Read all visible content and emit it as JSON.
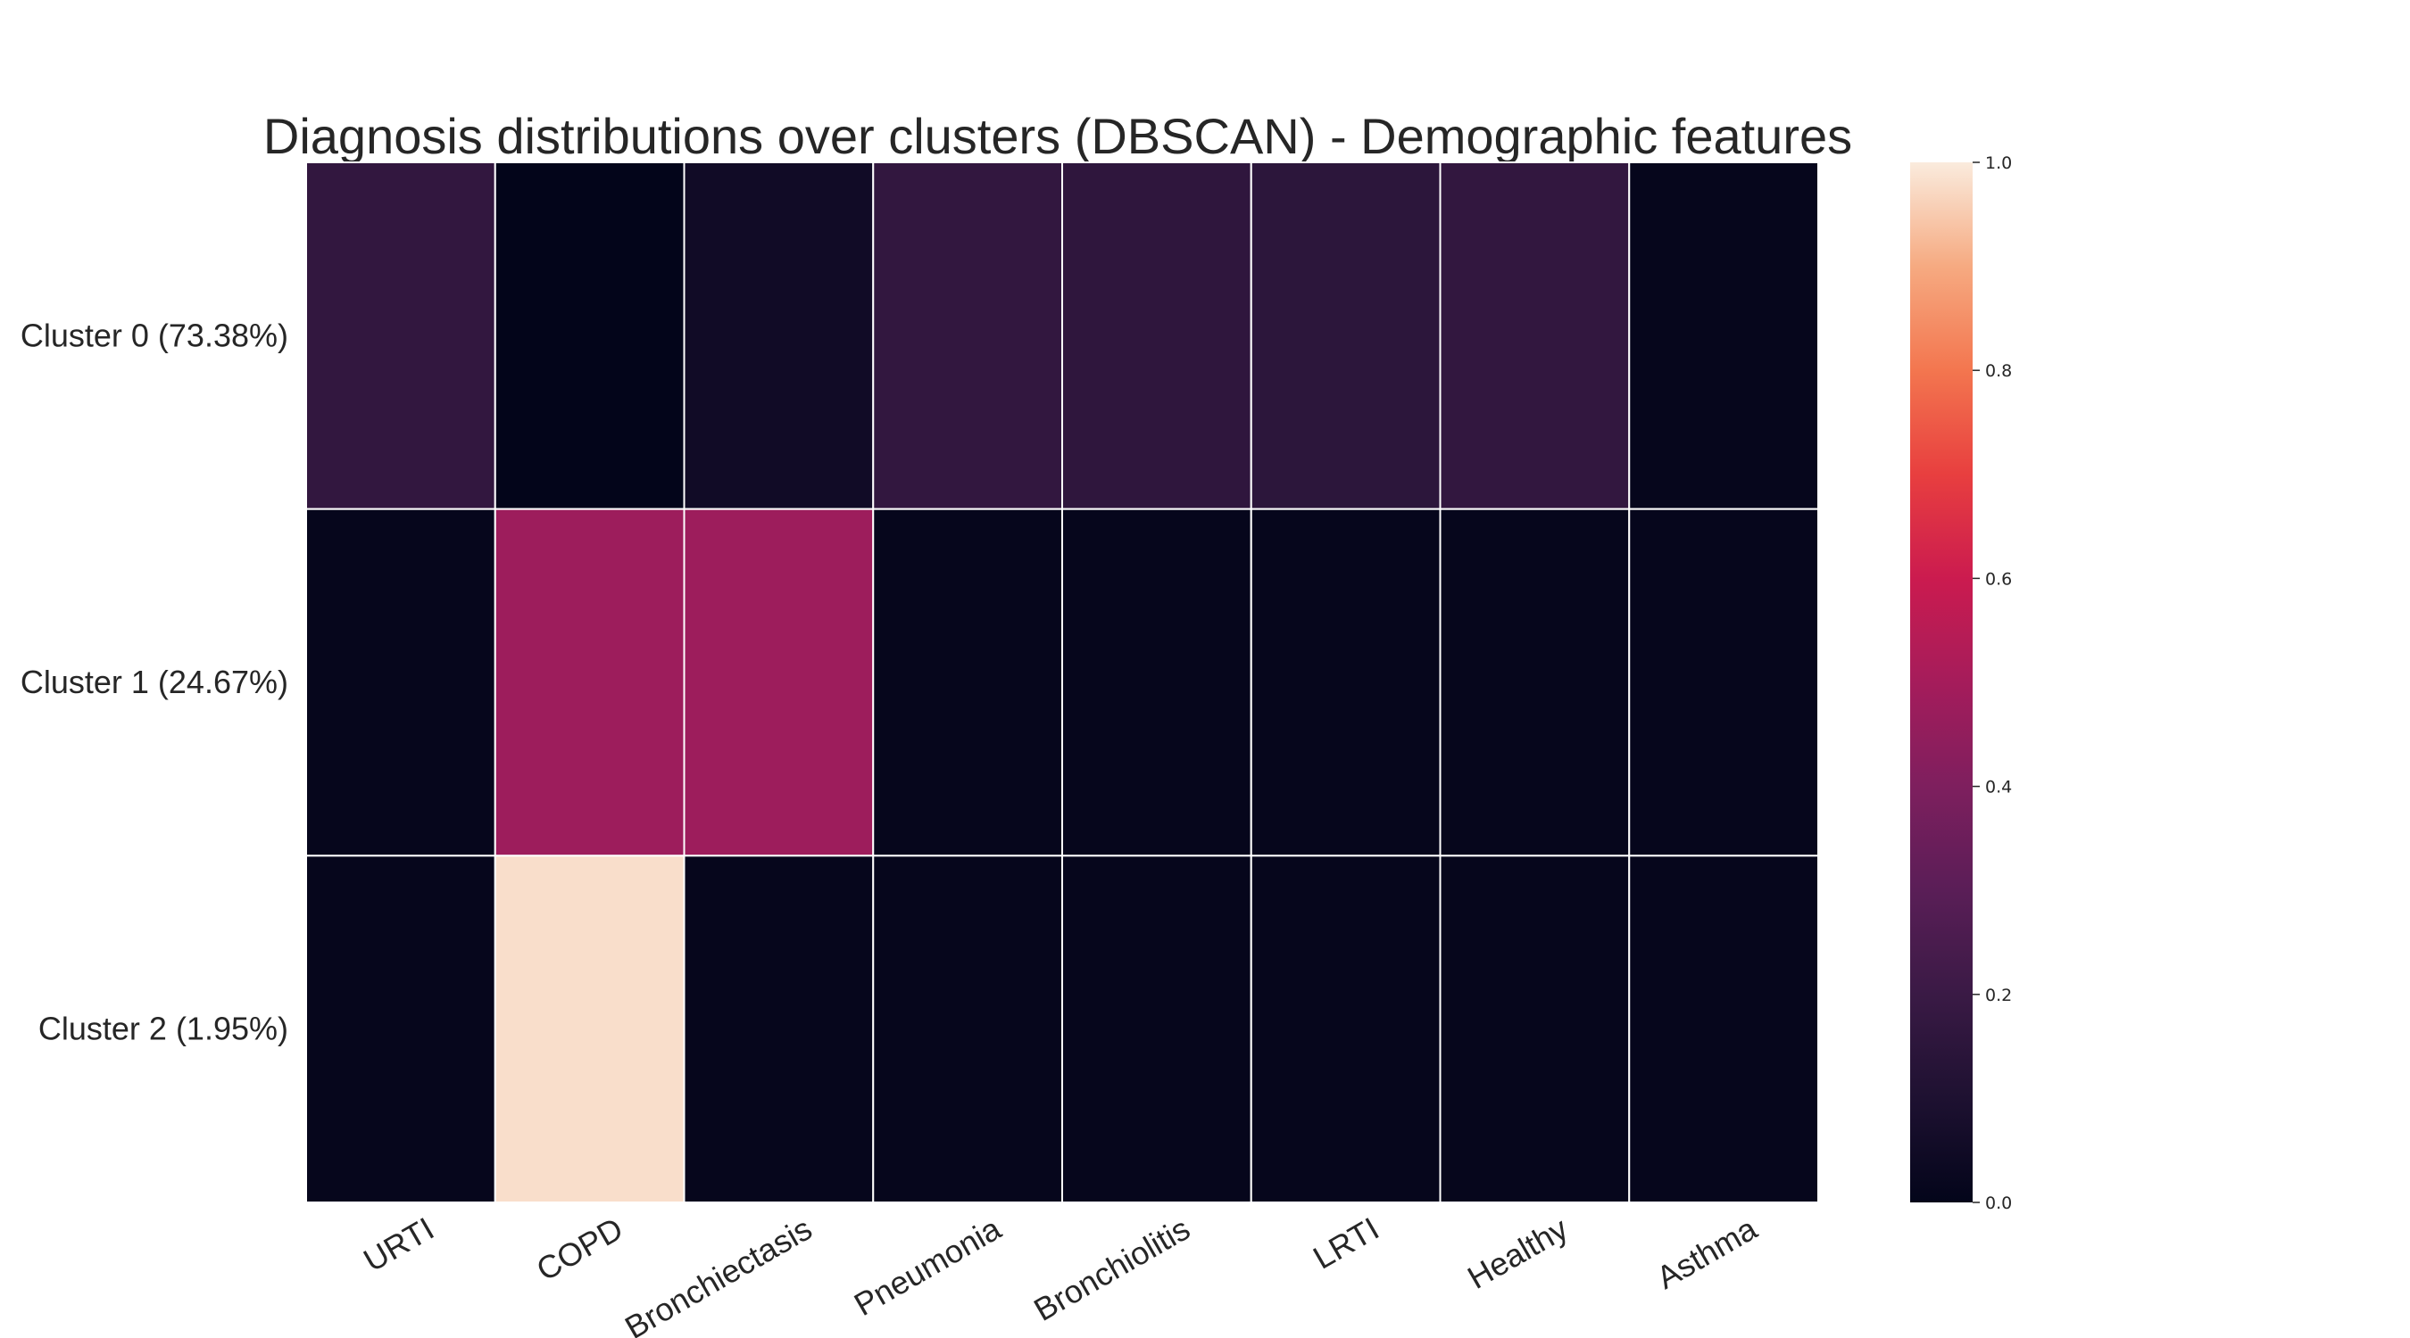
{
  "chart_data": {
    "type": "heatmap",
    "title": "Diagnosis distributions over clusters (DBSCAN) - Demographic features",
    "columns": [
      "URTI",
      "COPD",
      "Bronchiectasis",
      "Pneumonia",
      "Bronchiolitis",
      "LRTI",
      "Healthy",
      "Asthma"
    ],
    "rows": [
      "Cluster 0 (73.38%)",
      "Cluster 1 (24.67%)",
      "Cluster 2 (1.95%)"
    ],
    "values": [
      [
        0.17,
        0.0,
        0.05,
        0.17,
        0.16,
        0.15,
        0.17,
        0.01
      ],
      [
        0.01,
        0.48,
        0.48,
        0.01,
        0.01,
        0.01,
        0.01,
        0.01
      ],
      [
        0.01,
        0.98,
        0.01,
        0.01,
        0.01,
        0.01,
        0.01,
        0.01
      ]
    ],
    "colorbar": {
      "range": [
        0.0,
        1.0
      ],
      "ticks": [
        "0.0",
        "0.2",
        "0.4",
        "0.6",
        "0.8",
        "1.0"
      ],
      "colormap": "rocket"
    },
    "grid": true
  }
}
